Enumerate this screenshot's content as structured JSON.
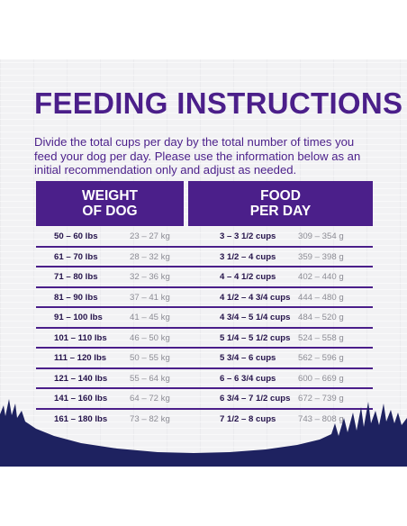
{
  "title": "FEEDING INSTRUCTIONS",
  "intro": "Divide the total cups per day by the total number of times you feed your dog per day. Please use the information below as an initial recommendation only and adjust as needed.",
  "table": {
    "header_weight": [
      "WEIGHT",
      "OF DOG"
    ],
    "header_food": [
      "FOOD",
      "PER DAY"
    ],
    "rows": [
      {
        "lbs": "50 – 60 lbs",
        "kg": "23 – 27 kg",
        "cups": "3 – 3 1/2 cups",
        "g": "309 – 354 g"
      },
      {
        "lbs": "61 – 70 lbs",
        "kg": "28 – 32 kg",
        "cups": "3 1/2 – 4 cups",
        "g": "359 – 398 g"
      },
      {
        "lbs": "71 – 80 lbs",
        "kg": "32 – 36 kg",
        "cups": "4 – 4 1/2 cups",
        "g": "402 – 440 g"
      },
      {
        "lbs": "81 – 90 lbs",
        "kg": "37 – 41 kg",
        "cups": "4 1/2 – 4 3/4 cups",
        "g": "444 – 480 g"
      },
      {
        "lbs": "91 – 100 lbs",
        "kg": "41 – 45 kg",
        "cups": "4 3/4 – 5 1/4 cups",
        "g": "484 – 520 g"
      },
      {
        "lbs": "101 – 110 lbs",
        "kg": "46 – 50 kg",
        "cups": "5 1/4 – 5 1/2 cups",
        "g": "524 – 558 g"
      },
      {
        "lbs": "111 – 120 lbs",
        "kg": "50 – 55 kg",
        "cups": "5 3/4 – 6 cups",
        "g": "562 – 596 g"
      },
      {
        "lbs": "121 – 140 lbs",
        "kg": "55 – 64 kg",
        "cups": "6 – 6 3/4 cups",
        "g": "600 – 669 g"
      },
      {
        "lbs": "141 – 160 lbs",
        "kg": "64 – 72 kg",
        "cups": "6 3/4 – 7 1/2 cups",
        "g": "672 – 739 g"
      },
      {
        "lbs": "161 – 180 lbs",
        "kg": "73 – 82 kg",
        "cups": "7 1/2 – 8 cups",
        "g": "743 – 808 g"
      }
    ]
  },
  "colors": {
    "brand_purple": "#4b1f8a",
    "grass_navy": "#1e2260",
    "panel_bg": "#f2f2f4"
  }
}
